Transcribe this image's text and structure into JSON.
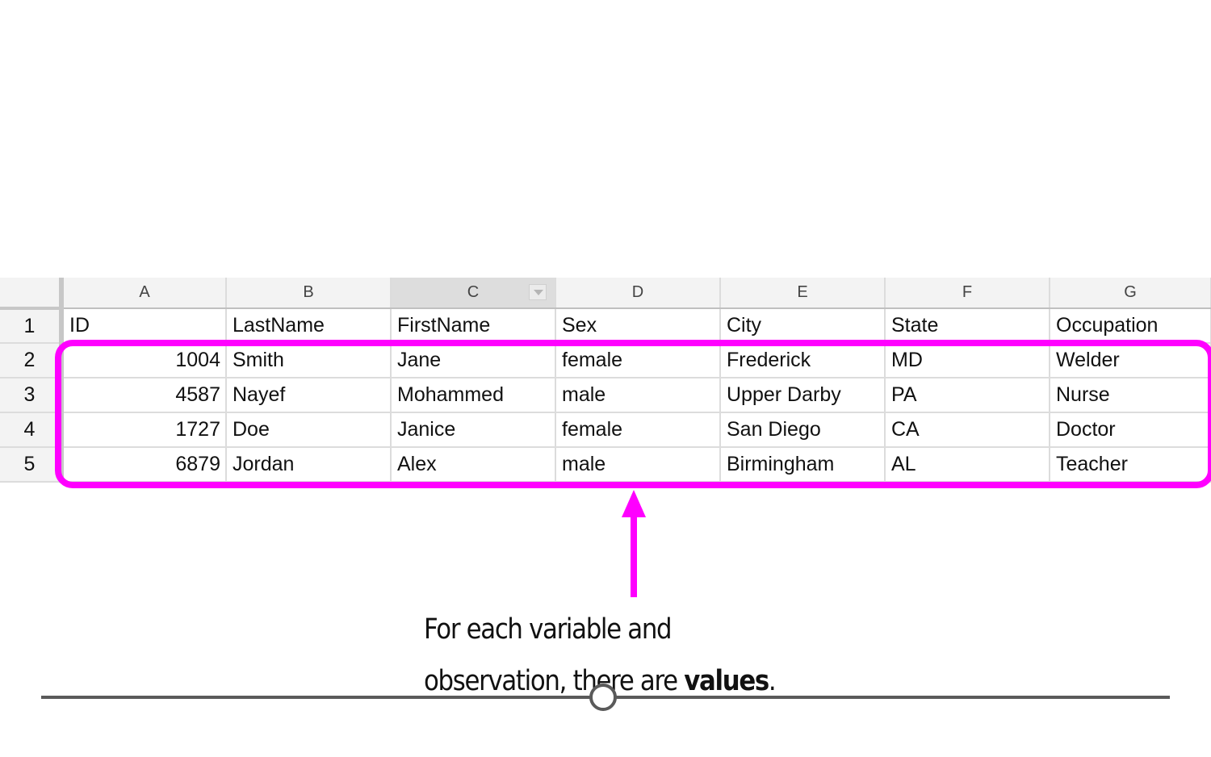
{
  "spreadsheet": {
    "column_headers": [
      "A",
      "B",
      "C",
      "D",
      "E",
      "F",
      "G"
    ],
    "row_numbers": [
      "1",
      "2",
      "3",
      "4",
      "5"
    ],
    "rows": [
      [
        "ID",
        "LastName",
        "FirstName",
        "Sex",
        "City",
        "State",
        "Occupation"
      ],
      [
        "1004",
        "Smith",
        "Jane",
        "female",
        "Frederick",
        "MD",
        "Welder"
      ],
      [
        "4587",
        "Nayef",
        "Mohammed",
        "male",
        "Upper Darby",
        "PA",
        "Nurse"
      ],
      [
        "1727",
        "Doe",
        "Janice",
        "female",
        "San Diego",
        "CA",
        "Doctor"
      ],
      [
        "6879",
        "Jordan",
        "Alex",
        "male",
        "Birmingham",
        "AL",
        "Teacher"
      ]
    ]
  },
  "caption": {
    "line1": "For each variable and",
    "line2_pre": "observation, there are ",
    "line2_bold": "values",
    "line2_post": "."
  },
  "colors": {
    "highlight": "#ff00ff",
    "timeline": "#5a5a5a"
  }
}
